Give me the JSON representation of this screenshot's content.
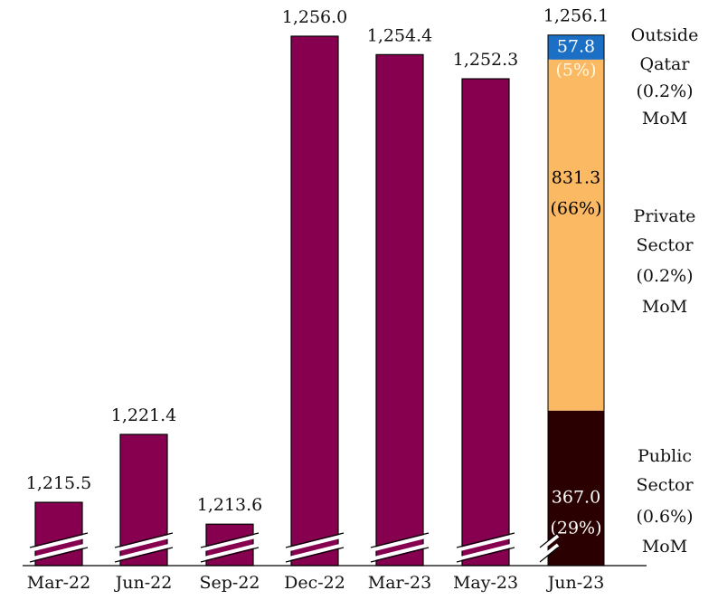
{
  "chart_data": {
    "type": "bar",
    "categories": [
      "Mar-22",
      "Jun-22",
      "Sep-22",
      "Dec-22",
      "Mar-23",
      "May-23",
      "Jun-23"
    ],
    "values": [
      1215.5,
      1221.4,
      1213.6,
      1256.0,
      1254.4,
      1252.3,
      1256.1
    ],
    "value_labels": [
      "1,215.5",
      "1,221.4",
      "1,213.6",
      "1,256.0",
      "1,254.4",
      "1,252.3",
      "1,256.1"
    ],
    "color": "#870050",
    "ylim": [
      1210,
      1256
    ],
    "axis_break": true,
    "stack": {
      "category_index": 6,
      "segments": [
        {
          "name": "Public Sector",
          "value": 367.0,
          "value_label": "367.0",
          "share": 29,
          "share_label": "(29%)",
          "change": 0.6,
          "change_label": "(0.6%)",
          "change_unit": "MoM",
          "color": "#2a0000",
          "label_color": "#ffffff"
        },
        {
          "name": "Private Sector",
          "value": 831.3,
          "value_label": "831.3",
          "share": 66,
          "share_label": "(66%)",
          "change": 0.2,
          "change_label": "(0.2%)",
          "change_unit": "MoM",
          "color": "#fbb964",
          "label_color": "#000000"
        },
        {
          "name": "Outside Qatar",
          "value": 57.8,
          "value_label": "57.8",
          "share": 5,
          "share_label": "(5%)",
          "change": 0.2,
          "change_label": "(0.2%)",
          "change_unit": "MoM",
          "color": "#1b6fc4",
          "label_color": "#ffffff"
        }
      ]
    }
  }
}
